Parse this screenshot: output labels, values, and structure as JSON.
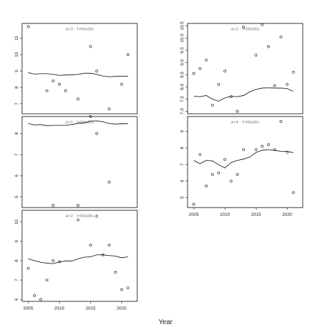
{
  "chart_data": {
    "type": "scatter",
    "xlabel": "Year",
    "panels": [
      {
        "label": "a=0  :  f=Medits",
        "xlim": [
          2004,
          2022.5
        ],
        "ylim": [
          6.4,
          11.9
        ],
        "yticks": [
          7,
          8,
          9,
          10,
          11
        ],
        "show_xticks": false,
        "points": [
          [
            2005,
            11.7
          ],
          [
            2008,
            7.8
          ],
          [
            2009,
            8.4
          ],
          [
            2010,
            8.2
          ],
          [
            2011,
            7.8
          ],
          [
            2013,
            7.3
          ],
          [
            2015,
            10.5
          ],
          [
            2016,
            9.0
          ],
          [
            2018,
            6.7
          ],
          [
            2020,
            8.2
          ],
          [
            2021,
            10.0
          ]
        ],
        "fit": [
          [
            2005,
            8.9
          ],
          [
            2006,
            8.82
          ],
          [
            2007,
            8.84
          ],
          [
            2008,
            8.84
          ],
          [
            2009,
            8.8
          ],
          [
            2010,
            8.74
          ],
          [
            2011,
            8.76
          ],
          [
            2012,
            8.77
          ],
          [
            2013,
            8.8
          ],
          [
            2014,
            8.87
          ],
          [
            2015,
            8.87
          ],
          [
            2016,
            8.8
          ],
          [
            2017,
            8.7
          ],
          [
            2018,
            8.65
          ],
          [
            2019,
            8.68
          ],
          [
            2020,
            8.68
          ],
          [
            2021,
            8.68
          ]
        ]
      },
      {
        "label": "a=1  :  f=Medits",
        "xlim": [
          2004,
          2022.5
        ],
        "ylim": [
          4.5,
          8.8
        ],
        "yticks": [
          5,
          6,
          7,
          8
        ],
        "show_xticks": false,
        "points": [
          [
            2009,
            4.6
          ],
          [
            2013,
            4.6
          ],
          [
            2015,
            8.8
          ],
          [
            2016,
            8.0
          ],
          [
            2018,
            5.7
          ]
        ],
        "fit": [
          [
            2005,
            8.47
          ],
          [
            2006,
            8.4
          ],
          [
            2007,
            8.42
          ],
          [
            2008,
            8.37
          ],
          [
            2009,
            8.38
          ],
          [
            2010,
            8.38
          ],
          [
            2011,
            8.39
          ],
          [
            2012,
            8.42
          ],
          [
            2013,
            8.48
          ],
          [
            2014,
            8.5
          ],
          [
            2015,
            8.58
          ],
          [
            2016,
            8.6
          ],
          [
            2017,
            8.55
          ],
          [
            2018,
            8.47
          ],
          [
            2019,
            8.44
          ],
          [
            2020,
            8.46
          ],
          [
            2021,
            8.46
          ]
        ]
      },
      {
        "label": "a=2  :  f=Medits",
        "xlim": [
          2004,
          2022.5
        ],
        "ylim": [
          5.9,
          10.6
        ],
        "yticks": [
          6,
          7,
          8,
          9,
          10
        ],
        "show_xticks": true,
        "xticks": [
          2005,
          2010,
          2015,
          2020
        ],
        "points": [
          [
            2005,
            7.6
          ],
          [
            2006,
            6.2
          ],
          [
            2007,
            6.0
          ],
          [
            2008,
            7.0
          ],
          [
            2009,
            8.0
          ],
          [
            2010,
            7.95
          ],
          [
            2013,
            10.1
          ],
          [
            2015,
            8.8
          ],
          [
            2016,
            10.3
          ],
          [
            2017,
            8.3
          ],
          [
            2018,
            8.8
          ],
          [
            2019,
            7.4
          ],
          [
            2020,
            6.5
          ],
          [
            2021,
            6.6
          ]
        ],
        "fit": [
          [
            2005,
            8.1
          ],
          [
            2006,
            8.0
          ],
          [
            2007,
            7.92
          ],
          [
            2008,
            7.87
          ],
          [
            2009,
            7.85
          ],
          [
            2010,
            7.93
          ],
          [
            2011,
            7.98
          ],
          [
            2012,
            7.98
          ],
          [
            2013,
            8.1
          ],
          [
            2014,
            8.18
          ],
          [
            2015,
            8.2
          ],
          [
            2016,
            8.3
          ],
          [
            2017,
            8.3
          ],
          [
            2018,
            8.26
          ],
          [
            2019,
            8.24
          ],
          [
            2020,
            8.15
          ],
          [
            2021,
            8.2
          ]
        ]
      },
      {
        "label": "a=3  :  f=Medits",
        "xlim": [
          2004,
          2022.5
        ],
        "ylim": [
          6.9,
          10.6
        ],
        "yticks": [
          7.0,
          7.5,
          8.0,
          8.5,
          9.0,
          9.5,
          10.0,
          10.5
        ],
        "show_xticks": false,
        "points": [
          [
            2005,
            8.55
          ],
          [
            2006,
            8.75
          ],
          [
            2007,
            9.1
          ],
          [
            2008,
            7.25
          ],
          [
            2009,
            8.1
          ],
          [
            2010,
            8.65
          ],
          [
            2011,
            7.6
          ],
          [
            2012,
            7.0
          ],
          [
            2013,
            10.45
          ],
          [
            2015,
            9.3
          ],
          [
            2016,
            10.55
          ],
          [
            2017,
            9.65
          ],
          [
            2018,
            8.05
          ],
          [
            2019,
            10.05
          ],
          [
            2020,
            8.1
          ],
          [
            2021,
            8.6
          ]
        ],
        "fit": [
          [
            2005,
            7.62
          ],
          [
            2006,
            7.6
          ],
          [
            2007,
            7.65
          ],
          [
            2008,
            7.5
          ],
          [
            2009,
            7.42
          ],
          [
            2010,
            7.55
          ],
          [
            2011,
            7.62
          ],
          [
            2012,
            7.6
          ],
          [
            2013,
            7.65
          ],
          [
            2014,
            7.8
          ],
          [
            2015,
            7.9
          ],
          [
            2016,
            7.95
          ],
          [
            2017,
            7.97
          ],
          [
            2018,
            7.95
          ],
          [
            2019,
            7.95
          ],
          [
            2020,
            7.93
          ],
          [
            2021,
            7.82
          ]
        ]
      },
      {
        "label": "a=4  :  f=Medits",
        "xlim": [
          2004,
          2022.5
        ],
        "ylim": [
          4.4,
          9.9
        ],
        "yticks": [
          5,
          6,
          7,
          8,
          9
        ],
        "show_xticks": true,
        "xticks": [
          2005,
          2010,
          2015,
          2020
        ],
        "points": [
          [
            2005,
            4.6
          ],
          [
            2006,
            7.6
          ],
          [
            2007,
            5.7
          ],
          [
            2008,
            6.4
          ],
          [
            2009,
            6.5
          ],
          [
            2010,
            7.3
          ],
          [
            2011,
            6.0
          ],
          [
            2012,
            6.4
          ],
          [
            2013,
            7.9
          ],
          [
            2015,
            7.9
          ],
          [
            2016,
            8.1
          ],
          [
            2017,
            8.2
          ],
          [
            2018,
            7.9
          ],
          [
            2019,
            9.6
          ],
          [
            2020,
            7.75
          ],
          [
            2021,
            5.3
          ]
        ],
        "fit": [
          [
            2005,
            7.25
          ],
          [
            2006,
            7.05
          ],
          [
            2007,
            7.25
          ],
          [
            2008,
            7.22
          ],
          [
            2009,
            6.98
          ],
          [
            2010,
            6.8
          ],
          [
            2011,
            7.12
          ],
          [
            2012,
            7.25
          ],
          [
            2013,
            7.33
          ],
          [
            2014,
            7.45
          ],
          [
            2015,
            7.73
          ],
          [
            2016,
            7.87
          ],
          [
            2017,
            7.9
          ],
          [
            2018,
            7.85
          ],
          [
            2019,
            7.8
          ],
          [
            2020,
            7.79
          ],
          [
            2021,
            7.72
          ]
        ]
      }
    ]
  }
}
